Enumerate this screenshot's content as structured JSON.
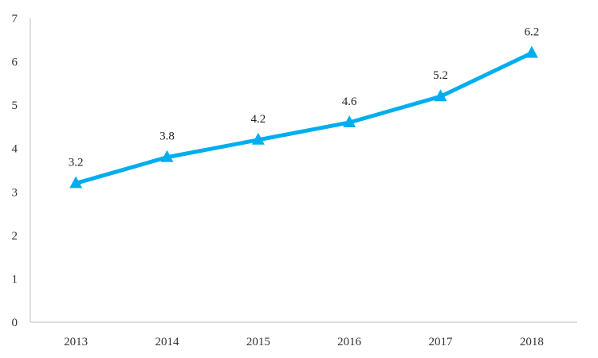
{
  "chart_data": {
    "type": "line",
    "title": "",
    "xlabel": "",
    "ylabel": "",
    "categories": [
      "2013",
      "2014",
      "2015",
      "2016",
      "2017",
      "2018"
    ],
    "series": [
      {
        "values": [
          3.2,
          3.8,
          4.2,
          4.6,
          5.2,
          6.2
        ],
        "color": "#00AEEF",
        "marker": "triangle",
        "data_labels": [
          "3.2",
          "3.8",
          "4.2",
          "4.6",
          "5.2",
          "6.2"
        ]
      }
    ],
    "ylim": [
      0,
      7
    ],
    "yticks": [
      "0",
      "1",
      "2",
      "3",
      "4",
      "5",
      "6",
      "7"
    ],
    "grid": false,
    "legend": "none"
  }
}
